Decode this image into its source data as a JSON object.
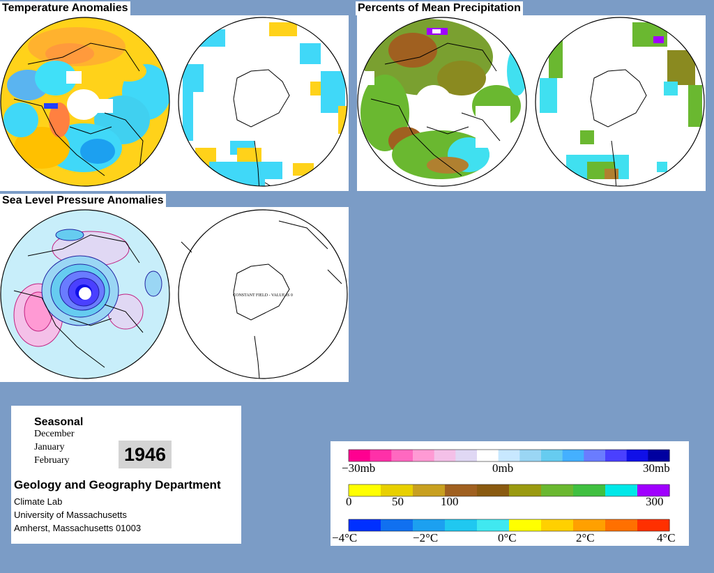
{
  "titles": {
    "temperature": "Temperature Anomalies",
    "precipitation": "Percents of Mean Precipitation",
    "pressure": "Sea Level Pressure Anomalies"
  },
  "maps": {
    "constant_field_note": "CONSTANT FIELD - VALUE IS 0"
  },
  "info": {
    "season": "Seasonal",
    "months": [
      "December",
      "January",
      "February"
    ],
    "year": "1946",
    "department": "Geology and Geography Department",
    "address": [
      "Climate Lab",
      "University of Massachusetts",
      "Amherst, Massachusetts 01003"
    ]
  },
  "legend": {
    "pressure": {
      "labels": [
        "−30mb",
        "0mb",
        "30mb"
      ],
      "colors": [
        "#ff0090",
        "#ff30a8",
        "#ff68c0",
        "#ff9ad4",
        "#f4c0e8",
        "#e0d8f4",
        "#ffffff",
        "#c8e8ff",
        "#9ad6f4",
        "#66ccf0",
        "#44b0ff",
        "#6a7cff",
        "#4a40ff",
        "#1010e8",
        "#0000a0"
      ]
    },
    "precipitation": {
      "labels": [
        "0",
        "50",
        "100",
        "300"
      ],
      "colors": [
        "#ffff00",
        "#e8d000",
        "#c8a020",
        "#a06020",
        "#8a5a10",
        "#9a9a10",
        "#6ab830",
        "#40c040",
        "#00e8e8",
        "#a000ff"
      ]
    },
    "temperature": {
      "labels": [
        "−4°C",
        "−2°C",
        "0°C",
        "2°C",
        "4°C"
      ],
      "colors": [
        "#0030ff",
        "#1070f0",
        "#1ca0f0",
        "#20c8f0",
        "#40e8f0",
        "#ffff00",
        "#ffd000",
        "#ffa000",
        "#ff7000",
        "#ff3000"
      ]
    }
  }
}
